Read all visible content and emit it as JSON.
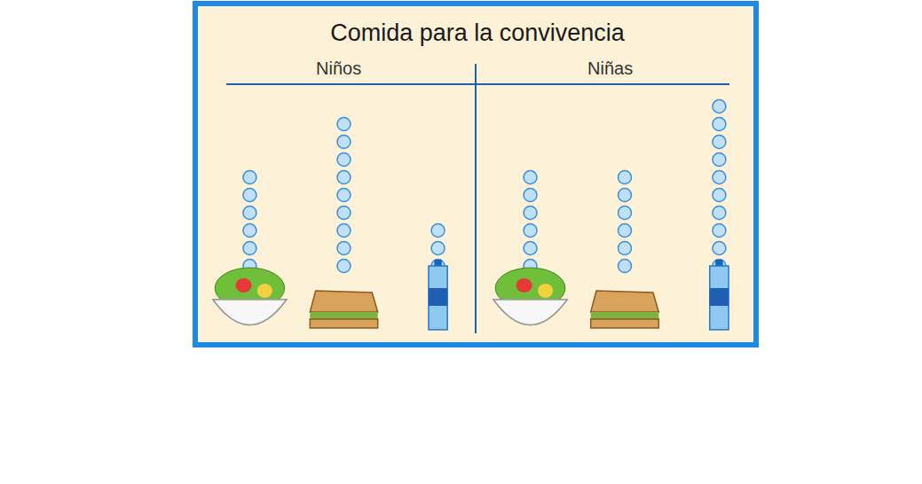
{
  "chart_data": {
    "type": "pictograph",
    "title": "Comida para la convivencia",
    "categories": [
      null,
      null,
      null
    ],
    "series": [
      {
        "name": "Niños",
        "values": [
          6,
          9,
          3
        ],
        "color": "#bfe0f8"
      },
      {
        "name": "Niñas",
        "values": [
          6,
          6,
          10
        ],
        "color": "#bfe0f8"
      }
    ],
    "ylim": [
      0,
      11
    ],
    "marker": "circle",
    "grid": false,
    "tick_labels": false
  }
}
